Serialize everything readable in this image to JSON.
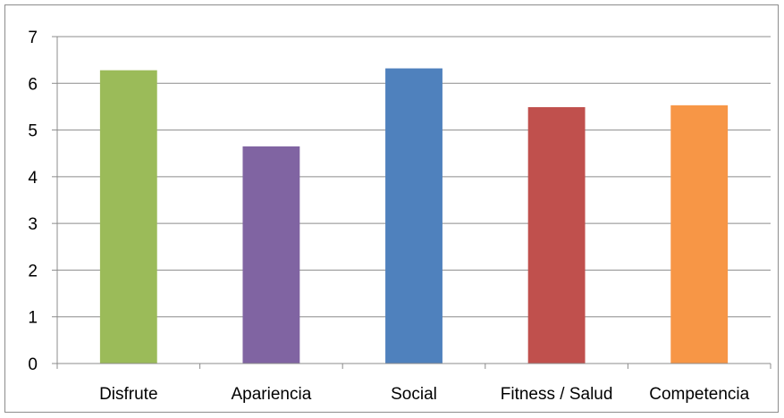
{
  "chart_data": {
    "type": "bar",
    "categories": [
      "Disfrute",
      "Apariencia",
      "Social",
      "Fitness / Salud",
      "Competencia"
    ],
    "values": [
      6.28,
      4.65,
      6.32,
      5.49,
      5.53
    ],
    "colors": [
      "#9bbb59",
      "#8064a2",
      "#4f81bd",
      "#c0504d",
      "#f79646"
    ],
    "title": "",
    "xlabel": "",
    "ylabel": "",
    "ylim": [
      0,
      7
    ],
    "yticks": [
      "0",
      "1",
      "2",
      "3",
      "4",
      "5",
      "6",
      "7"
    ],
    "grid": true,
    "legend": "none"
  }
}
